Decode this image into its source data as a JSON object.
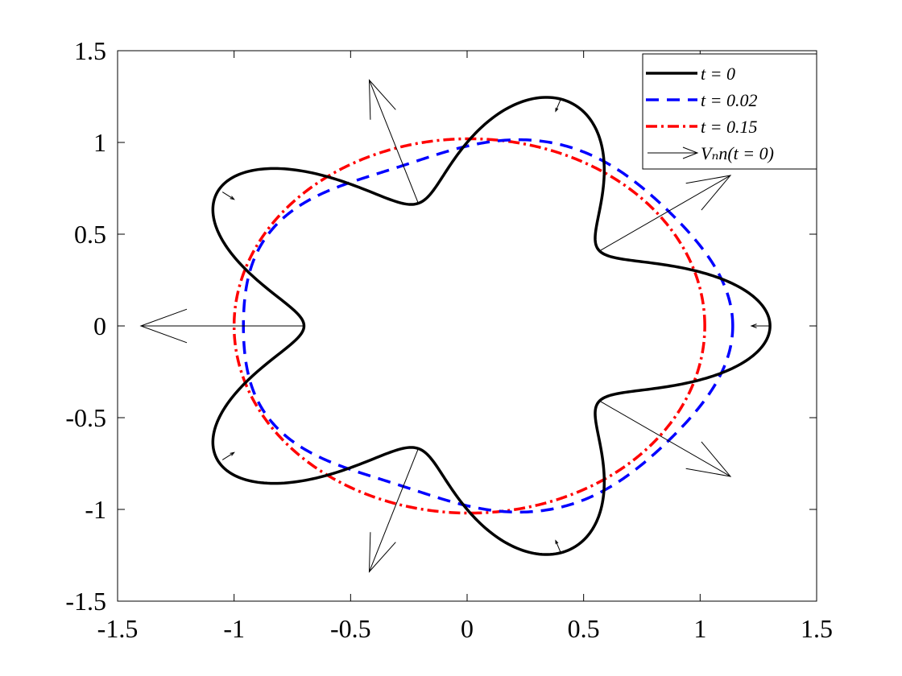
{
  "chart_data": {
    "type": "line",
    "title": "",
    "xlabel": "",
    "ylabel": "",
    "xlim": [
      -1.5,
      1.5
    ],
    "ylim": [
      -1.5,
      1.5
    ],
    "grid": false,
    "legend_position": "top-right",
    "xticks": [
      "-1.5",
      "-1",
      "-0.5",
      "0",
      "0.5",
      "1",
      "1.5"
    ],
    "yticks": [
      "1.5",
      "1",
      "0.5",
      "0",
      "-0.5",
      "-1",
      "-1.5"
    ],
    "series": [
      {
        "name": "t = 0",
        "style": "solid",
        "color": "#000000",
        "shape": "five-lobed star r(θ) = 1 + 0.3·cos(5θ)",
        "points": [
          [
            1.3,
            0.0
          ],
          [
            0.35,
            1.24
          ],
          [
            -0.24,
            0.66
          ],
          [
            -1.05,
            0.76
          ],
          [
            -0.7,
            0.0
          ],
          [
            -1.05,
            -0.76
          ],
          [
            -0.24,
            -0.66
          ],
          [
            0.35,
            -1.24
          ],
          [
            0.57,
            -0.42
          ],
          [
            1.0,
            -0.3
          ]
        ]
      },
      {
        "name": "t = 0.02",
        "style": "dashed",
        "color": "#0000ff",
        "points": [
          [
            1.09,
            0.0
          ],
          [
            0.2,
            1.05
          ],
          [
            -0.55,
            0.8
          ],
          [
            -0.98,
            0.2
          ],
          [
            -0.98,
            -0.2
          ],
          [
            -0.55,
            -0.8
          ],
          [
            0.2,
            -1.05
          ],
          [
            0.85,
            -0.65
          ]
        ]
      },
      {
        "name": "t = 0.15",
        "style": "dash-dot",
        "color": "#ff0000",
        "points": [
          [
            1.02,
            0.0
          ],
          [
            0.0,
            1.02
          ],
          [
            -1.0,
            0.0
          ],
          [
            0.0,
            -1.02
          ]
        ]
      }
    ],
    "arrows": {
      "name": "V_n n(t = 0)",
      "color": "#000000",
      "vectors": [
        {
          "x": 1.3,
          "y": 0.0,
          "dx": -0.08,
          "dy": 0.0
        },
        {
          "x": 0.57,
          "y": 0.41,
          "dx": 0.56,
          "dy": 0.41
        },
        {
          "x": -0.21,
          "y": 0.67,
          "dx": -0.21,
          "dy": 0.67
        },
        {
          "x": -0.7,
          "y": 0.0,
          "dx": -0.7,
          "dy": 0.0
        },
        {
          "x": -0.21,
          "y": -0.67,
          "dx": -0.21,
          "dy": -0.67
        },
        {
          "x": 0.57,
          "y": -0.41,
          "dx": 0.56,
          "dy": -0.41
        },
        {
          "x": 0.4,
          "y": 1.23,
          "dx": -0.02,
          "dy": -0.06
        },
        {
          "x": -1.05,
          "y": 0.73,
          "dx": 0.05,
          "dy": -0.04
        },
        {
          "x": -1.05,
          "y": -0.73,
          "dx": 0.05,
          "dy": 0.04
        },
        {
          "x": 0.4,
          "y": -1.23,
          "dx": -0.02,
          "dy": 0.06
        }
      ]
    }
  },
  "legend": {
    "entries": [
      {
        "label": "t = 0",
        "color": "#000000",
        "style": "solid"
      },
      {
        "label": "t = 0.02",
        "color": "#0000ff",
        "style": "dashed"
      },
      {
        "label": "t = 0.15",
        "color": "#ff0000",
        "style": "dash-dot"
      },
      {
        "label": "Vₙn(t = 0)",
        "color": "#000000",
        "style": "arrow"
      }
    ]
  }
}
